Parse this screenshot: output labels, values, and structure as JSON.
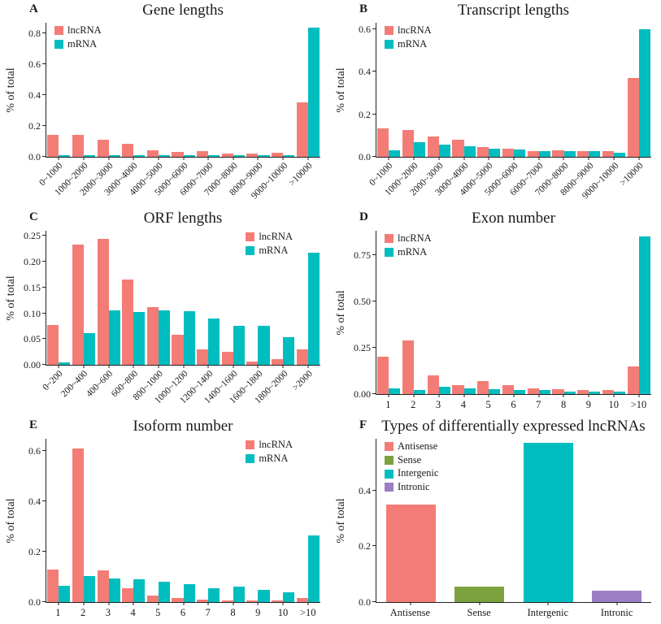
{
  "figure": {
    "colors": {
      "lncRNA": "#F47C76",
      "mRNA": "#00BDBF",
      "antisense": "#F47C76",
      "sense": "#7BA23F",
      "intergenic": "#00BDBF",
      "intronic": "#9C7EC4"
    },
    "axis_color": "#222222"
  },
  "chart_data": [
    {
      "panel": "A",
      "type": "bar",
      "title": "Gene lengths",
      "ylabel": "% of total",
      "ymax": 0.87,
      "yticks": [
        0.0,
        0.2,
        0.4,
        0.6,
        0.8
      ],
      "ytick_labels": [
        "0.0",
        "0.2",
        "0.4",
        "0.6",
        "0.8"
      ],
      "rotate_xticks": true,
      "legend_position": "top-left",
      "legend": [
        {
          "label": "lncRNA",
          "color": "lncRNA"
        },
        {
          "label": "mRNA",
          "color": "mRNA"
        }
      ],
      "categories": [
        "0~1000",
        "1000~2000",
        "2000~3000",
        "3000~4000",
        "4000~5000",
        "5000~6000",
        "6000~7000",
        "7000~8000",
        "8000~9000",
        "9000~10000",
        ">10000"
      ],
      "series": [
        {
          "name": "lncRNA",
          "color": "lncRNA",
          "values": [
            0.14,
            0.145,
            0.11,
            0.085,
            0.04,
            0.03,
            0.035,
            0.02,
            0.02,
            0.025,
            0.355
          ]
        },
        {
          "name": "mRNA",
          "color": "mRNA",
          "values": [
            0.01,
            0.01,
            0.012,
            0.01,
            0.01,
            0.008,
            0.008,
            0.008,
            0.008,
            0.01,
            0.84
          ]
        }
      ]
    },
    {
      "panel": "B",
      "type": "bar",
      "title": "Transcript lengths",
      "ylabel": "% of total",
      "ymax": 0.63,
      "yticks": [
        0.0,
        0.2,
        0.4,
        0.6
      ],
      "ytick_labels": [
        "0.0",
        "0.2",
        "0.4",
        "0.6"
      ],
      "rotate_xticks": true,
      "legend_position": "top-left",
      "legend": [
        {
          "label": "lncRNA",
          "color": "lncRNA"
        },
        {
          "label": "mRNA",
          "color": "mRNA"
        }
      ],
      "categories": [
        "0~1000",
        "1000~2000",
        "2000~3000",
        "3000~4000",
        "4000~5000",
        "5000~6000",
        "6000~7000",
        "7000~8000",
        "8000~9000",
        "9000~10000",
        ">10000"
      ],
      "series": [
        {
          "name": "lncRNA",
          "color": "lncRNA",
          "values": [
            0.135,
            0.125,
            0.095,
            0.08,
            0.045,
            0.04,
            0.028,
            0.03,
            0.025,
            0.025,
            0.37
          ]
        },
        {
          "name": "mRNA",
          "color": "mRNA",
          "values": [
            0.03,
            0.07,
            0.058,
            0.05,
            0.04,
            0.035,
            0.027,
            0.026,
            0.025,
            0.02,
            0.6
          ]
        }
      ]
    },
    {
      "panel": "C",
      "type": "bar",
      "title": "ORF lengths",
      "ylabel": "% of total",
      "ymax": 0.26,
      "yticks": [
        0.0,
        0.05,
        0.1,
        0.15,
        0.2,
        0.25
      ],
      "ytick_labels": [
        "0.00",
        "0.05",
        "0.10",
        "0.15",
        "0.20",
        "0.25"
      ],
      "rotate_xticks": true,
      "legend_position": "top-right",
      "legend": [
        {
          "label": "lncRNA",
          "color": "lncRNA"
        },
        {
          "label": "mRNA",
          "color": "mRNA"
        }
      ],
      "categories": [
        "0~200",
        "200~400",
        "400~600",
        "600~800",
        "800~1000",
        "1000~1200",
        "1200~1400",
        "1400~1600",
        "1600~1800",
        "1800~2000",
        ">2000"
      ],
      "series": [
        {
          "name": "lncRNA",
          "color": "lncRNA",
          "values": [
            0.078,
            0.233,
            0.245,
            0.165,
            0.112,
            0.058,
            0.03,
            0.026,
            0.007,
            0.011,
            0.03
          ]
        },
        {
          "name": "mRNA",
          "color": "mRNA",
          "values": [
            0.004,
            0.062,
            0.105,
            0.103,
            0.105,
            0.104,
            0.09,
            0.076,
            0.075,
            0.053,
            0.218
          ]
        }
      ]
    },
    {
      "panel": "D",
      "type": "bar",
      "title": "Exon number",
      "ylabel": "% of total",
      "ymax": 0.88,
      "yticks": [
        0.0,
        0.25,
        0.5,
        0.75
      ],
      "ytick_labels": [
        "0.00",
        "0.25",
        "0.50",
        "0.75"
      ],
      "rotate_xticks": false,
      "legend_position": "top-left",
      "legend": [
        {
          "label": "lncRNA",
          "color": "lncRNA"
        },
        {
          "label": "mRNA",
          "color": "mRNA"
        }
      ],
      "categories": [
        "1",
        "2",
        "3",
        "4",
        "5",
        "6",
        "7",
        "8",
        "9",
        "10",
        ">10"
      ],
      "series": [
        {
          "name": "lncRNA",
          "color": "lncRNA",
          "values": [
            0.2,
            0.29,
            0.1,
            0.05,
            0.07,
            0.05,
            0.03,
            0.025,
            0.02,
            0.02,
            0.15
          ]
        },
        {
          "name": "mRNA",
          "color": "mRNA",
          "values": [
            0.03,
            0.02,
            0.04,
            0.03,
            0.025,
            0.02,
            0.02,
            0.015,
            0.015,
            0.015,
            0.85
          ]
        }
      ]
    },
    {
      "panel": "E",
      "type": "bar",
      "title": "Isoform number",
      "ylabel": "% of total",
      "ymax": 0.65,
      "yticks": [
        0.0,
        0.2,
        0.4,
        0.6
      ],
      "ytick_labels": [
        "0.0",
        "0.2",
        "0.4",
        "0.6"
      ],
      "rotate_xticks": false,
      "legend_position": "top-right",
      "legend": [
        {
          "label": "lncRNA",
          "color": "lncRNA"
        },
        {
          "label": "mRNA",
          "color": "mRNA"
        }
      ],
      "categories": [
        "1",
        "2",
        "3",
        "4",
        "5",
        "6",
        "7",
        "8",
        "9",
        "10",
        ">10"
      ],
      "series": [
        {
          "name": "lncRNA",
          "color": "lncRNA",
          "values": [
            0.13,
            0.61,
            0.125,
            0.055,
            0.025,
            0.015,
            0.01,
            0.008,
            0.005,
            0.005,
            0.015
          ]
        },
        {
          "name": "mRNA",
          "color": "mRNA",
          "values": [
            0.065,
            0.105,
            0.095,
            0.09,
            0.08,
            0.07,
            0.055,
            0.06,
            0.05,
            0.04,
            0.265
          ]
        }
      ]
    },
    {
      "panel": "F",
      "type": "bar",
      "title": "Types of differentially expressed lncRNAs",
      "ylabel": "% of total",
      "ymax": 0.585,
      "yticks": [
        0.0,
        0.2,
        0.4
      ],
      "ytick_labels": [
        "0.0",
        "0.2",
        "0.4"
      ],
      "rotate_xticks": false,
      "legend_position": "top-left",
      "legend": [
        {
          "label": "Antisense",
          "color": "antisense"
        },
        {
          "label": "Sense",
          "color": "sense"
        },
        {
          "label": "Intergenic",
          "color": "intergenic"
        },
        {
          "label": "Intronic",
          "color": "intronic"
        }
      ],
      "categories": [
        "Antisense",
        "Sense",
        "Intergenic",
        "Intronic"
      ],
      "series": [
        {
          "name": "lncRNA types",
          "colors": [
            "antisense",
            "sense",
            "intergenic",
            "intronic"
          ],
          "values": [
            0.35,
            0.055,
            0.57,
            0.04
          ]
        }
      ]
    }
  ]
}
